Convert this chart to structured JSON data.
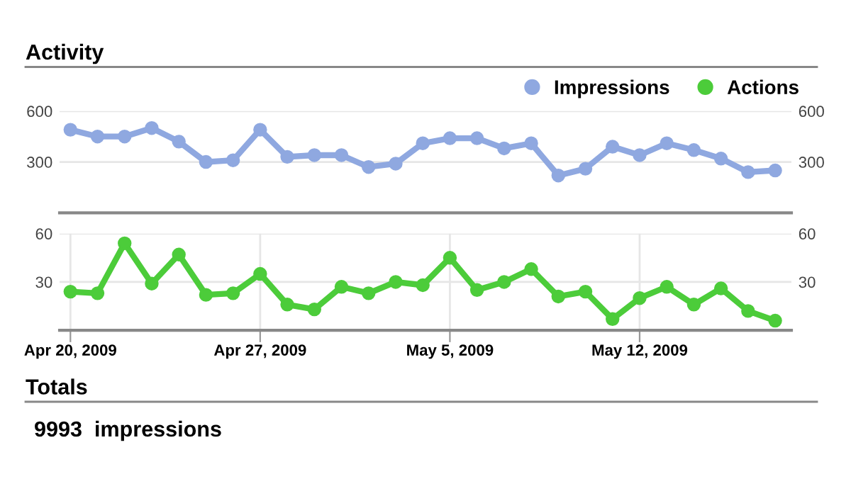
{
  "chart_data": [
    {
      "type": "line",
      "title": "Activity",
      "categories": [
        null,
        null,
        null,
        null,
        null,
        null,
        null,
        null,
        null,
        null,
        null,
        null,
        null,
        null,
        null,
        null,
        null,
        null,
        null,
        null,
        null,
        null,
        null,
        null,
        null,
        null,
        null
      ],
      "series": [
        {
          "name": "Impressions",
          "color": "#8fa8e0",
          "values": [
            490,
            450,
            450,
            500,
            420,
            300,
            310,
            490,
            330,
            340,
            340,
            270,
            290,
            410,
            440,
            440,
            380,
            410,
            220,
            260,
            390,
            340,
            410,
            370,
            320,
            240,
            250
          ]
        }
      ],
      "ylim": [
        0,
        600
      ],
      "yticks": [
        300,
        600
      ],
      "y2lim": [
        0,
        600
      ],
      "y2ticks": [
        300,
        600
      ],
      "grid": "y",
      "legend": "top right",
      "marker": "circle",
      "line_style": "solid",
      "tick_labels": "y"
    },
    {
      "type": "line",
      "categories": [
        "Apr 20, 2009",
        null,
        null,
        null,
        null,
        null,
        null,
        "Apr 27, 2009",
        null,
        null,
        null,
        null,
        null,
        null,
        "May 5, 2009",
        null,
        null,
        null,
        null,
        null,
        null,
        "May 12, 2009",
        null,
        null,
        null,
        null,
        null
      ],
      "series": [
        {
          "name": "Actions",
          "color": "#4ccc3a",
          "values": [
            24,
            23,
            54,
            29,
            47,
            22,
            23,
            35,
            16,
            13,
            27,
            23,
            30,
            28,
            45,
            25,
            30,
            38,
            21,
            24,
            7,
            20,
            27,
            16,
            26,
            12,
            6
          ]
        }
      ],
      "ylim": [
        0,
        60
      ],
      "yticks": [
        30,
        60
      ],
      "y2lim": [
        0,
        60
      ],
      "y2ticks": [
        30,
        60
      ],
      "grid": true,
      "legend": "top right",
      "marker": "circle",
      "line_style": "solid",
      "annotations": [
        "Totals",
        "9993  impressions"
      ]
    }
  ]
}
